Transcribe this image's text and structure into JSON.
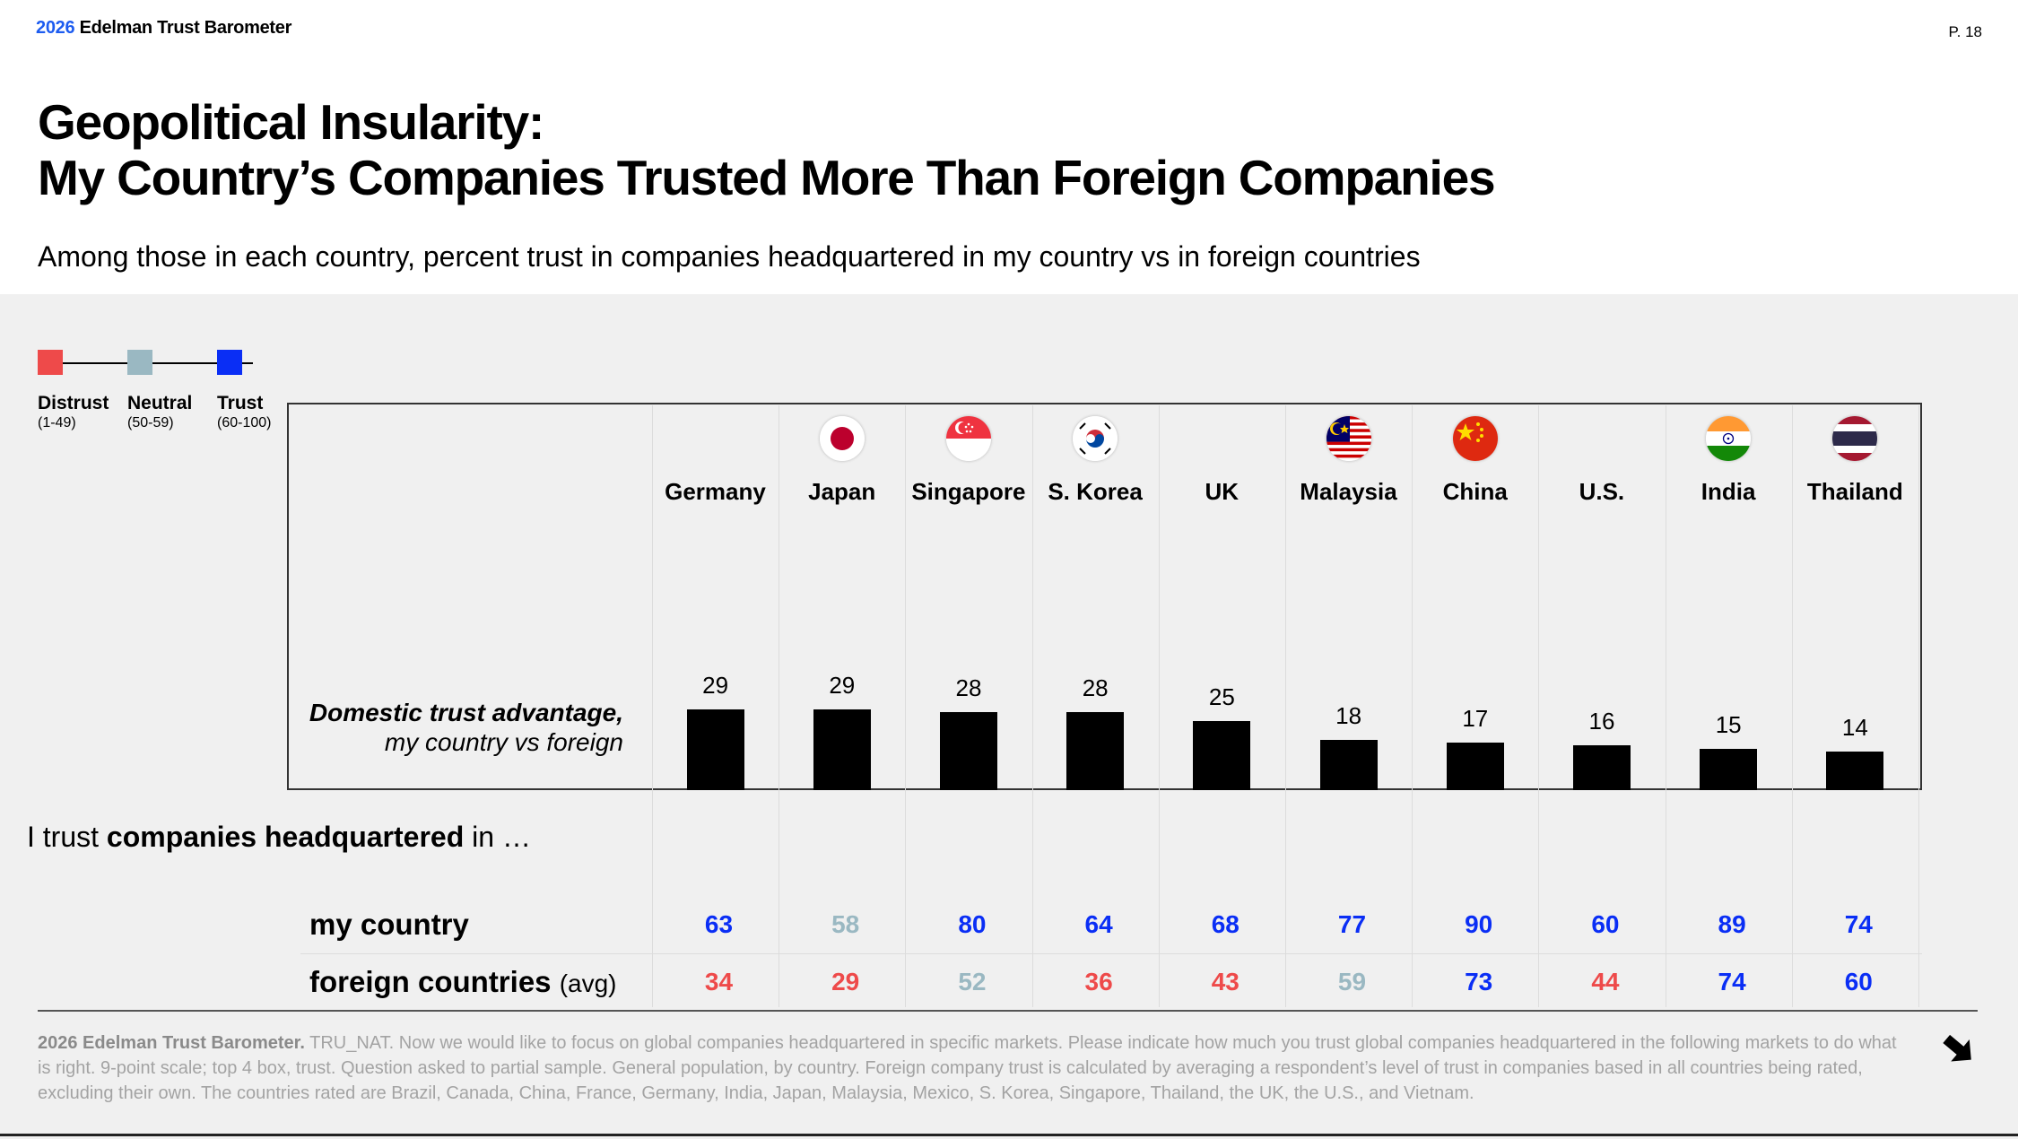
{
  "header": {
    "brand_year": "2026",
    "brand_name": "Edelman Trust Barometer",
    "page_number": "P. 18"
  },
  "title_line1": "Geopolitical Insularity:",
  "title_line2": "My Country’s Companies Trusted More Than Foreign Companies",
  "subtitle": "Among those in each country, percent trust in companies headquartered in my country vs in foreign countries",
  "legend": [
    {
      "label": "Distrust",
      "range": "(1-49)",
      "color": "#ee4a4a"
    },
    {
      "label": "Neutral",
      "range": "(50-59)",
      "color": "#9ab8c2"
    },
    {
      "label": "Trust",
      "range": "(60-100)",
      "color": "#0a2ef5"
    }
  ],
  "advantage_label_bold": "Domestic trust advantage,",
  "advantage_label_rest": "my country vs foreign",
  "trust_intro": {
    "prefix": "I trust ",
    "bold": "companies headquartered",
    "suffix": " in …"
  },
  "row_labels": {
    "my_country": "my country",
    "foreign_main": "foreign countries",
    "foreign_avg": "(avg)"
  },
  "colors": {
    "distrust": "#ee4a4a",
    "neutral": "#9ab8c2",
    "trust": "#0a2ef5",
    "bar": "#000000"
  },
  "chart_data": {
    "type": "bar",
    "title": "Geopolitical Insularity: My Country’s Companies Trusted More Than Foreign Companies",
    "subtitle": "Among those in each country, percent trust in companies headquartered in my country vs in foreign countries",
    "categories": [
      "Germany",
      "Japan",
      "Singapore",
      "S. Korea",
      "UK",
      "Malaysia",
      "China",
      "U.S.",
      "India",
      "Thailand"
    ],
    "flags": [
      "none",
      "japan-flag-icon",
      "singapore-flag-icon",
      "south-korea-flag-icon",
      "none",
      "malaysia-flag-icon",
      "china-flag-icon",
      "none",
      "india-flag-icon",
      "thailand-flag-icon"
    ],
    "series": [
      {
        "name": "Domestic trust advantage, my country vs foreign",
        "values": [
          29,
          29,
          28,
          28,
          25,
          18,
          17,
          16,
          15,
          14
        ]
      }
    ],
    "table": {
      "my_country": [
        63,
        58,
        80,
        64,
        68,
        77,
        90,
        60,
        89,
        74
      ],
      "foreign_countries_avg": [
        34,
        29,
        52,
        36,
        43,
        59,
        73,
        44,
        74,
        60
      ]
    },
    "ylim": [
      0,
      100
    ],
    "grid": false,
    "legend_position": "top-left"
  },
  "footnote": {
    "bold": "2026 Edelman Trust Barometer.",
    "text": " TRU_NAT. Now we would like to focus on global companies headquartered in specific markets. Please indicate how much you trust global companies headquartered in the following markets to do what is right. 9-point scale; top 4 box, trust. Question asked to partial sample. General population, by country. Foreign company trust is calculated by averaging a respondent’s level of trust in companies based in all countries being rated, excluding their own. The countries rated are Brazil, Canada, China, France, Germany, India, Japan, Malaysia, Mexico, S. Korea, Singapore, Thailand, the UK, the U.S., and Vietnam."
  }
}
